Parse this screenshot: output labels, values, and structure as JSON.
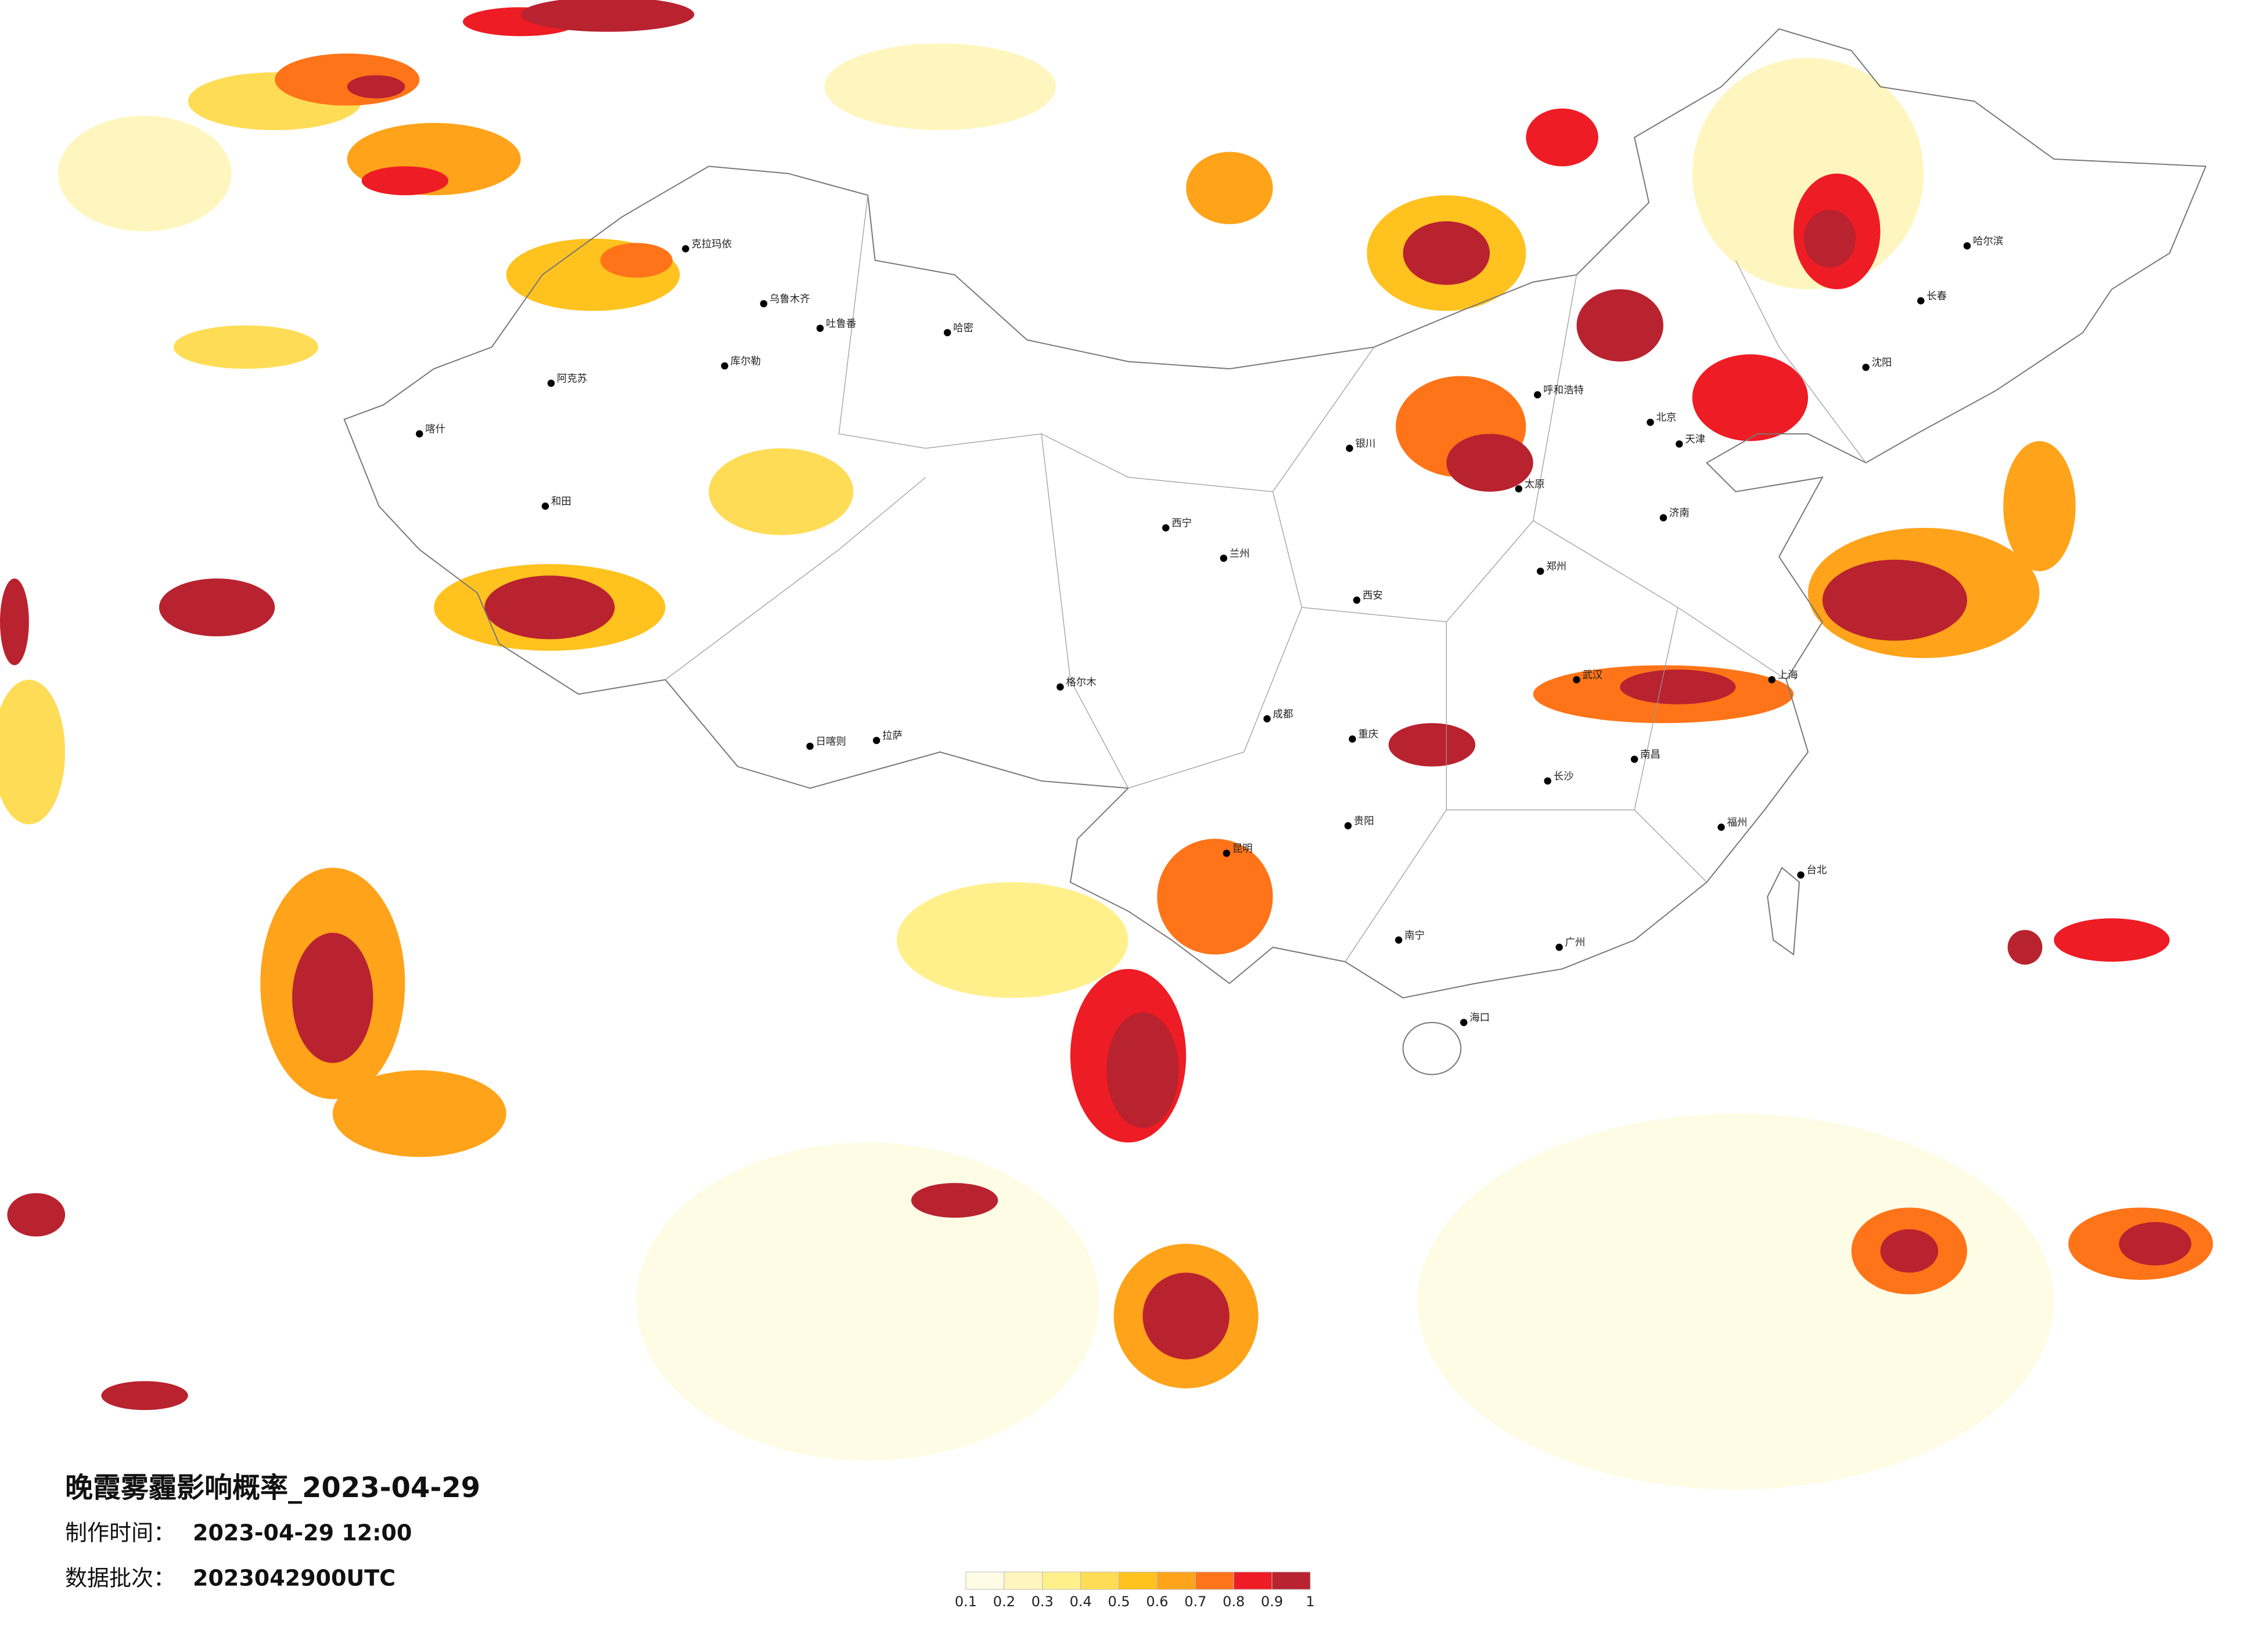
{
  "title": "晚霞雾霾影响概率_2023-04-29",
  "info": [
    {
      "label": "制作时间：",
      "value": "2023-04-29 12:00"
    },
    {
      "label": "数据批次：",
      "value": "2023042900UTC"
    }
  ],
  "colorbar": {
    "ticks": [
      0.1,
      0.2,
      0.3,
      0.4,
      0.5,
      0.6,
      0.7,
      0.8,
      0.9,
      1
    ],
    "colors": [
      "#fffce6",
      "#fff6bf",
      "#fff08c",
      "#ffdc55",
      "#ffc21f",
      "#ffa31a",
      "#ff7418",
      "#ee1c24",
      "#b9222f"
    ]
  },
  "cities": [
    "克拉玛依",
    "乌鲁木齐",
    "吐鲁番",
    "哈密",
    "喀什",
    "和田",
    "阿克苏",
    "库尔勒",
    "拉萨",
    "日喀则",
    "格尔木",
    "西宁",
    "兰州",
    "银川",
    "成都",
    "重庆",
    "昆明",
    "贵阳",
    "南宁",
    "广州",
    "福州",
    "上海",
    "北京",
    "天津",
    "哈尔滨",
    "长春",
    "沈阳",
    "呼和浩特",
    "太原",
    "西安",
    "郑州",
    "武汉",
    "长沙",
    "南昌",
    "济南",
    "海口",
    "台北"
  ]
}
